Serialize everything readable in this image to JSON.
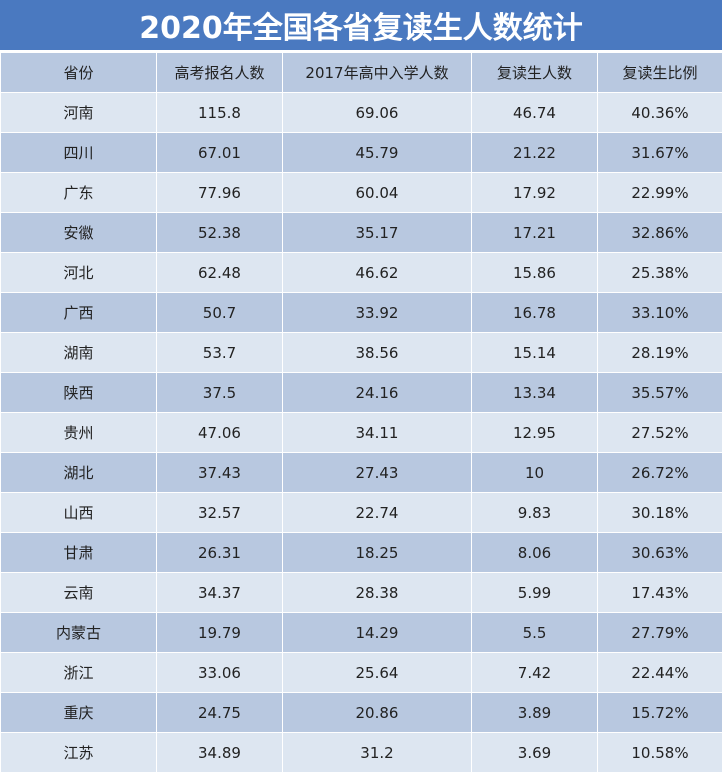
{
  "title": "2020年全国各省复读生人数统计",
  "headers": [
    "省份",
    "高考报名人数",
    "2017年高中入学人数",
    "复读生人数",
    "复读生比例"
  ],
  "rows": [
    [
      "河南",
      "115.8",
      "69.06",
      "46.74",
      "40.36%"
    ],
    [
      "四川",
      "67.01",
      "45.79",
      "21.22",
      "31.67%"
    ],
    [
      "广东",
      "77.96",
      "60.04",
      "17.92",
      "22.99%"
    ],
    [
      "安徽",
      "52.38",
      "35.17",
      "17.21",
      "32.86%"
    ],
    [
      "河北",
      "62.48",
      "46.62",
      "15.86",
      "25.38%"
    ],
    [
      "广西",
      "50.7",
      "33.92",
      "16.78",
      "33.10%"
    ],
    [
      "湖南",
      "53.7",
      "38.56",
      "15.14",
      "28.19%"
    ],
    [
      "陕西",
      "37.5",
      "24.16",
      "13.34",
      "35.57%"
    ],
    [
      "贵州",
      "47.06",
      "34.11",
      "12.95",
      "27.52%"
    ],
    [
      "湖北",
      "37.43",
      "27.43",
      "10",
      "26.72%"
    ],
    [
      "山西",
      "32.57",
      "22.74",
      "9.83",
      "30.18%"
    ],
    [
      "甘肃",
      "26.31",
      "18.25",
      "8.06",
      "30.63%"
    ],
    [
      "云南",
      "34.37",
      "28.38",
      "5.99",
      "17.43%"
    ],
    [
      "内蒙古",
      "19.79",
      "14.29",
      "5.5",
      "27.79%"
    ],
    [
      "浙江",
      "33.06",
      "25.64",
      "7.42",
      "22.44%"
    ],
    [
      "重庆",
      "24.75",
      "20.86",
      "3.89",
      "15.72%"
    ],
    [
      "江苏",
      "34.89",
      "31.2",
      "3.69",
      "10.58%"
    ]
  ],
  "colors": {
    "title_bg": "#4a79c0",
    "header_bg": "#b8c8e0",
    "row_light": "#dde6f1",
    "row_dark": "#b8c8e0"
  }
}
